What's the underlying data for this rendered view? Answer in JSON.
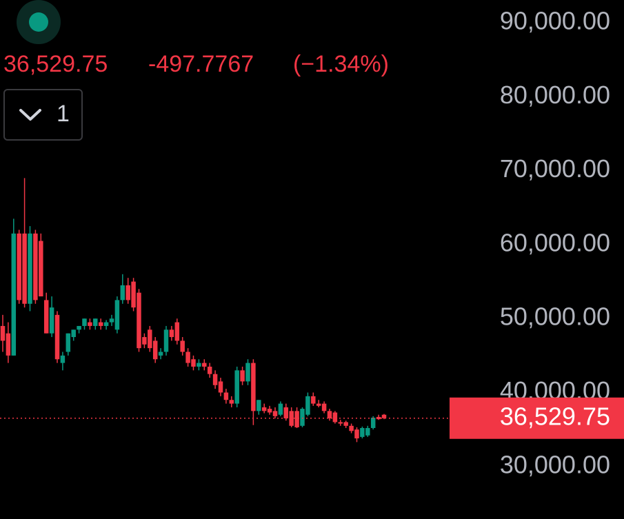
{
  "header": {
    "price": "36,529.75",
    "change": "-497.7767",
    "change_pct": "(−1.34%)",
    "interval": "1"
  },
  "chart_data": {
    "type": "candlestick",
    "up_color": "#089981",
    "down_color": "#f23645",
    "ylim": [
      22900,
      93075
    ],
    "yticks": [
      {
        "value": 30000,
        "label": "30,000.00"
      },
      {
        "value": 40000,
        "label": "40,000.00"
      },
      {
        "value": 50000,
        "label": "50,000.00"
      },
      {
        "value": 60000,
        "label": "60,000.00"
      },
      {
        "value": 70000,
        "label": "70,000.00"
      },
      {
        "value": 80000,
        "label": "80,000.00"
      },
      {
        "value": 90000,
        "label": "90,000.00"
      }
    ],
    "last_price": {
      "value": 36529.75,
      "label": "36,529.75"
    },
    "open": [
      49000,
      48000,
      45000,
      61500,
      61500,
      52000,
      61500,
      60500,
      52500,
      48000,
      50500,
      44000,
      45500,
      47500,
      48500,
      49000,
      49500,
      49000,
      49500,
      49000,
      49500,
      48500,
      52500,
      54500,
      55000,
      53500,
      47500,
      48500,
      47000,
      45000,
      45500,
      48500,
      49500,
      47000,
      45500,
      44500,
      43500,
      44000,
      43500,
      42500,
      41500,
      40000,
      39000,
      38500,
      43000,
      41500,
      44000,
      37500,
      38000,
      37800,
      37500,
      37000,
      38000,
      37500,
      37500,
      35500,
      37000,
      39500,
      38500,
      38500,
      37500,
      37300,
      36000,
      36000,
      35500,
      35000,
      34000,
      34200,
      35200,
      36700,
      37000
    ],
    "high": [
      50500,
      49500,
      63500,
      62000,
      69000,
      62500,
      62000,
      61500,
      53500,
      53000,
      51000,
      45500,
      48000,
      48500,
      49000,
      50000,
      50000,
      50000,
      50000,
      49800,
      50500,
      53000,
      56000,
      55500,
      55500,
      54000,
      48000,
      49000,
      47500,
      46000,
      49000,
      49000,
      50000,
      47500,
      46000,
      45000,
      44500,
      44500,
      44000,
      43000,
      42000,
      40500,
      39500,
      43500,
      43500,
      44500,
      44500,
      39000,
      38500,
      38200,
      38000,
      38800,
      38500,
      38000,
      38000,
      38000,
      40000,
      40000,
      39000,
      38800,
      37800,
      37500,
      36300,
      36200,
      35800,
      35300,
      35400,
      35500,
      36800,
      37000,
      37100
    ],
    "low": [
      45500,
      44000,
      45000,
      52000,
      51500,
      51000,
      52000,
      53000,
      48000,
      47500,
      44000,
      43000,
      45000,
      47000,
      48000,
      48500,
      48500,
      48500,
      48500,
      48500,
      49000,
      48000,
      52000,
      52000,
      51000,
      45500,
      46000,
      45500,
      44000,
      44500,
      45000,
      47000,
      46500,
      45000,
      43500,
      43000,
      43000,
      43000,
      42000,
      40500,
      39500,
      38500,
      38000,
      38000,
      41000,
      41000,
      35600,
      37000,
      37200,
      37000,
      36500,
      36800,
      36200,
      35300,
      35200,
      35300,
      36800,
      38200,
      38000,
      37200,
      36200,
      35800,
      35500,
      35200,
      34500,
      33300,
      33800,
      34000,
      35000,
      36300,
      36400
    ],
    "close": [
      47000,
      45000,
      61500,
      52500,
      52000,
      61500,
      52500,
      53000,
      48000,
      51500,
      44500,
      45000,
      48000,
      48500,
      49000,
      50000,
      49000,
      50000,
      49000,
      49500,
      50000,
      52500,
      54500,
      52500,
      51500,
      46000,
      46500,
      46000,
      44500,
      45500,
      48500,
      47500,
      47000,
      45500,
      44000,
      43500,
      44000,
      43500,
      42500,
      41000,
      40000,
      39000,
      38500,
      43000,
      41500,
      44000,
      37500,
      39000,
      37500,
      37300,
      36800,
      38500,
      36500,
      35500,
      35300,
      37800,
      39500,
      38500,
      38200,
      37500,
      36500,
      36000,
      35800,
      35500,
      34800,
      33800,
      35200,
      35200,
      36600,
      36400,
      36529.75
    ]
  }
}
